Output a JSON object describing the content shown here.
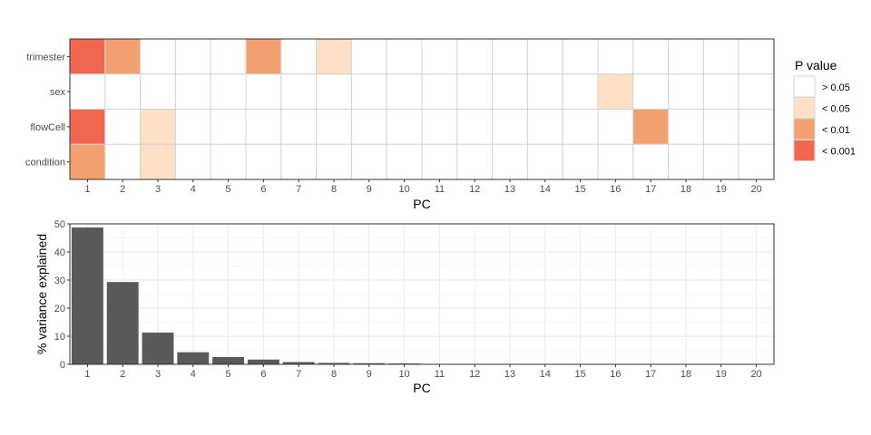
{
  "chart_data": [
    {
      "type": "heatmap",
      "xlabel": "PC",
      "ylabel": "",
      "x_categories": [
        "1",
        "2",
        "3",
        "4",
        "5",
        "6",
        "7",
        "8",
        "9",
        "10",
        "11",
        "12",
        "13",
        "14",
        "15",
        "16",
        "17",
        "18",
        "19",
        "20"
      ],
      "y_categories": [
        "trimester",
        "sex",
        "flowCell",
        "condition"
      ],
      "cells": {
        "trimester": [
          "< 0.001",
          "< 0.01",
          "> 0.05",
          "> 0.05",
          "> 0.05",
          "< 0.01",
          "> 0.05",
          "< 0.05",
          "> 0.05",
          "> 0.05",
          "> 0.05",
          "> 0.05",
          "> 0.05",
          "> 0.05",
          "> 0.05",
          "> 0.05",
          "> 0.05",
          "> 0.05",
          "> 0.05",
          "> 0.05"
        ],
        "sex": [
          "> 0.05",
          "> 0.05",
          "> 0.05",
          "> 0.05",
          "> 0.05",
          "> 0.05",
          "> 0.05",
          "> 0.05",
          "> 0.05",
          "> 0.05",
          "> 0.05",
          "> 0.05",
          "> 0.05",
          "> 0.05",
          "> 0.05",
          "< 0.05",
          "> 0.05",
          "> 0.05",
          "> 0.05",
          "> 0.05"
        ],
        "flowCell": [
          "< 0.001",
          "> 0.05",
          "< 0.05",
          "> 0.05",
          "> 0.05",
          "> 0.05",
          "> 0.05",
          "> 0.05",
          "> 0.05",
          "> 0.05",
          "> 0.05",
          "> 0.05",
          "> 0.05",
          "> 0.05",
          "> 0.05",
          "> 0.05",
          "< 0.01",
          "> 0.05",
          "> 0.05",
          "> 0.05"
        ],
        "condition": [
          "< 0.01",
          "> 0.05",
          "< 0.05",
          "> 0.05",
          "> 0.05",
          "> 0.05",
          "> 0.05",
          "> 0.05",
          "> 0.05",
          "> 0.05",
          "> 0.05",
          "> 0.05",
          "> 0.05",
          "> 0.05",
          "> 0.05",
          "> 0.05",
          "> 0.05",
          "> 0.05",
          "> 0.05",
          "> 0.05"
        ]
      },
      "legend": {
        "title": "P value",
        "position": "right",
        "entries": [
          {
            "label": "> 0.05",
            "color": "#ffffff"
          },
          {
            "label": "< 0.05",
            "color": "#fde0c5"
          },
          {
            "label": "< 0.01",
            "color": "#f4a172"
          },
          {
            "label": "< 0.001",
            "color": "#f0664e"
          }
        ]
      },
      "grid": true
    },
    {
      "type": "bar",
      "xlabel": "PC",
      "ylabel": "% variance explained",
      "categories": [
        "1",
        "2",
        "3",
        "4",
        "5",
        "6",
        "7",
        "8",
        "9",
        "10",
        "11",
        "12",
        "13",
        "14",
        "15",
        "16",
        "17",
        "18",
        "19",
        "20"
      ],
      "values": [
        48.7,
        29.3,
        11.3,
        4.3,
        2.6,
        1.7,
        0.8,
        0.5,
        0.4,
        0.3,
        0,
        0,
        0,
        0,
        0,
        0,
        0,
        0,
        0,
        0
      ],
      "ylim": [
        0,
        50
      ],
      "yticks": [
        0,
        10,
        20,
        30,
        40,
        50
      ],
      "bar_color": "#595959",
      "grid": true
    }
  ]
}
